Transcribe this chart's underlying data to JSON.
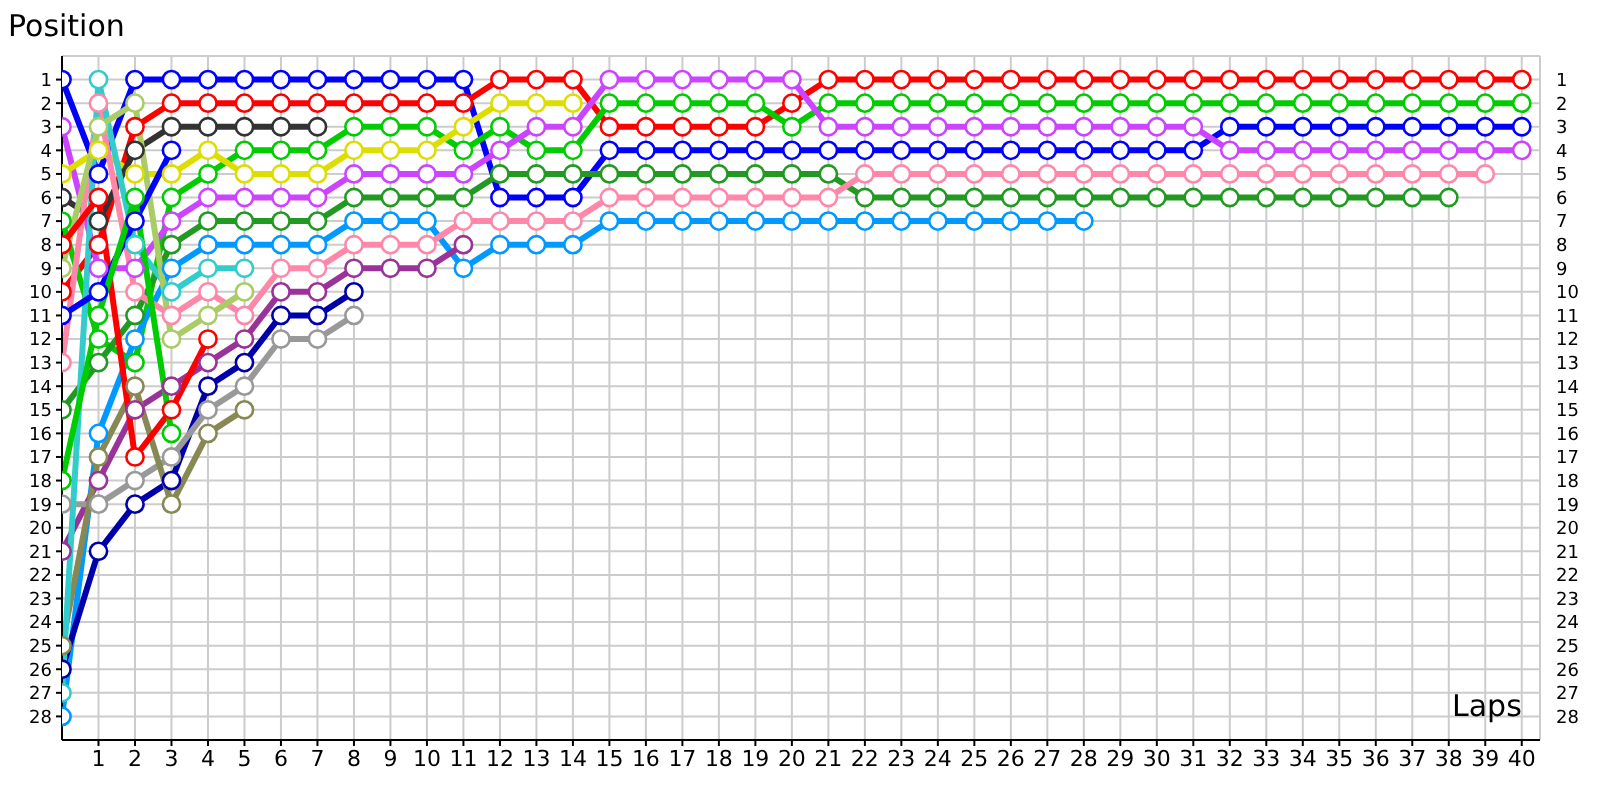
{
  "chart_data": {
    "type": "line",
    "xlabel": "Laps",
    "ylabel": "Position",
    "x": [
      0,
      1,
      2,
      3,
      4,
      5,
      6,
      7,
      8,
      9,
      10,
      11,
      12,
      13,
      14,
      15,
      16,
      17,
      18,
      19,
      20,
      21,
      22,
      23,
      24,
      25,
      26,
      27,
      28,
      29,
      30,
      31,
      32,
      33,
      34,
      35,
      36,
      37,
      38,
      39,
      40
    ],
    "xlim": [
      0,
      40.5
    ],
    "xticks": [
      1,
      2,
      3,
      4,
      5,
      6,
      7,
      8,
      9,
      10,
      11,
      12,
      13,
      14,
      15,
      16,
      17,
      18,
      19,
      20,
      21,
      22,
      23,
      24,
      25,
      26,
      27,
      28,
      29,
      30,
      31,
      32,
      33,
      34,
      35,
      36,
      37,
      38,
      39,
      40
    ],
    "ylim": [
      29,
      0
    ],
    "yticks": [
      1,
      2,
      3,
      4,
      5,
      6,
      7,
      8,
      9,
      10,
      11,
      12,
      13,
      14,
      15,
      16,
      17,
      18,
      19,
      20,
      21,
      22,
      23,
      24,
      25,
      26,
      27,
      28
    ],
    "y2lim": [
      29,
      0
    ],
    "y2ticks": [
      1,
      2,
      3,
      4,
      5,
      6,
      7,
      8,
      9,
      10,
      11,
      12,
      13,
      14,
      15,
      16,
      17,
      18,
      19,
      20,
      21,
      22,
      23,
      24,
      25,
      26,
      27,
      28
    ],
    "grid": true,
    "marker": "circle",
    "line_style": "solid",
    "series": [
      {
        "color": "#0000ff",
        "values": [
          1,
          5,
          1,
          1,
          1,
          1,
          1,
          1,
          1,
          1,
          1,
          1,
          6,
          6,
          6,
          4,
          4,
          4,
          4,
          4,
          4,
          4,
          4,
          4,
          4,
          4,
          4,
          4,
          4,
          4,
          4,
          4,
          3,
          3,
          3,
          3,
          3,
          3,
          3,
          3,
          3
        ]
      },
      {
        "color": "#ff0000",
        "values": [
          10,
          8,
          3,
          2,
          2,
          2,
          2,
          2,
          2,
          2,
          2,
          2,
          1,
          1,
          1,
          3,
          3,
          3,
          3,
          3,
          2,
          1,
          1,
          1,
          1,
          1,
          1,
          1,
          1,
          1,
          1,
          1,
          1,
          1,
          1,
          1,
          1,
          1,
          1,
          1,
          1
        ]
      },
      {
        "color": "#00cc00",
        "values": [
          7,
          12,
          13,
          6,
          5,
          4,
          4,
          4,
          3,
          3,
          3,
          4,
          3,
          4,
          4,
          2,
          2,
          2,
          2,
          2,
          3,
          2,
          2,
          2,
          2,
          2,
          2,
          2,
          2,
          2,
          2,
          2,
          2,
          2,
          2,
          2,
          2,
          2,
          2,
          2,
          2
        ]
      },
      {
        "color": "#cc44ff",
        "values": [
          3,
          9,
          9,
          7,
          6,
          6,
          6,
          6,
          5,
          5,
          5,
          5,
          4,
          3,
          3,
          1,
          1,
          1,
          1,
          1,
          1,
          3,
          3,
          3,
          3,
          3,
          3,
          3,
          3,
          3,
          3,
          3,
          4,
          4,
          4,
          4,
          4,
          4,
          4,
          4,
          4
        ]
      },
      {
        "color": "#dddd00",
        "values": [
          5,
          4,
          5,
          5,
          4,
          5,
          5,
          5,
          4,
          4,
          4,
          3,
          2,
          2,
          2,
          null,
          null,
          null,
          null,
          null,
          null,
          null,
          null,
          null,
          null,
          null,
          null,
          null,
          null,
          null,
          null,
          null,
          null,
          null,
          null,
          null,
          null,
          null,
          null,
          null,
          null
        ]
      },
      {
        "color": "#333333",
        "values": [
          6,
          7,
          4,
          3,
          3,
          3,
          3,
          3,
          null,
          null,
          null,
          null,
          null,
          null,
          null,
          null,
          null,
          null,
          null,
          null,
          null,
          null,
          null,
          null,
          null,
          null,
          null,
          null,
          null,
          null,
          null,
          null,
          null,
          null,
          null,
          null,
          null,
          null,
          null,
          null,
          null
        ]
      },
      {
        "color": "#229922",
        "values": [
          15,
          13,
          11,
          8,
          7,
          7,
          7,
          7,
          6,
          6,
          6,
          6,
          5,
          5,
          5,
          5,
          5,
          5,
          5,
          5,
          5,
          5,
          6,
          6,
          6,
          6,
          6,
          6,
          6,
          6,
          6,
          6,
          6,
          6,
          6,
          6,
          6,
          6,
          6,
          null,
          null
        ]
      },
      {
        "color": "#0099ff",
        "values": [
          28,
          16,
          12,
          9,
          8,
          8,
          8,
          8,
          7,
          7,
          7,
          9,
          8,
          8,
          8,
          7,
          7,
          7,
          7,
          7,
          7,
          7,
          7,
          7,
          7,
          7,
          7,
          7,
          7,
          null,
          null,
          null,
          null,
          null,
          null,
          null,
          null,
          null,
          null,
          null,
          null
        ]
      },
      {
        "color": "#ff88aa",
        "values": [
          13,
          2,
          10,
          11,
          10,
          11,
          9,
          9,
          8,
          8,
          8,
          7,
          7,
          7,
          7,
          6,
          6,
          6,
          6,
          6,
          6,
          6,
          5,
          5,
          5,
          5,
          5,
          5,
          5,
          5,
          5,
          5,
          5,
          5,
          5,
          5,
          5,
          5,
          5,
          5,
          null
        ]
      },
      {
        "color": "#993399",
        "values": [
          21,
          18,
          15,
          14,
          13,
          12,
          10,
          10,
          9,
          9,
          9,
          8,
          null,
          null,
          null,
          null,
          null,
          null,
          null,
          null,
          null,
          null,
          null,
          null,
          null,
          null,
          null,
          null,
          null,
          null,
          null,
          null,
          null,
          null,
          null,
          null,
          null,
          null,
          null,
          null,
          null
        ]
      },
      {
        "color": "#0000aa",
        "values": [
          26,
          21,
          19,
          18,
          14,
          13,
          11,
          11,
          10,
          null,
          null,
          null,
          null,
          null,
          null,
          null,
          null,
          null,
          null,
          null,
          null,
          null,
          null,
          null,
          null,
          null,
          null,
          null,
          null,
          null,
          null,
          null,
          null,
          null,
          null,
          null,
          null,
          null,
          null,
          null,
          null
        ]
      },
      {
        "color": "#999999",
        "values": [
          19,
          19,
          18,
          17,
          15,
          14,
          12,
          12,
          11,
          null,
          null,
          null,
          null,
          null,
          null,
          null,
          null,
          null,
          null,
          null,
          null,
          null,
          null,
          null,
          null,
          null,
          null,
          null,
          null,
          null,
          null,
          null,
          null,
          null,
          null,
          null,
          null,
          null,
          null,
          null,
          null
        ]
      },
      {
        "color": "#888855",
        "values": [
          25,
          17,
          14,
          19,
          16,
          15,
          null,
          null,
          null,
          null,
          null,
          null,
          null,
          null,
          null,
          null,
          null,
          null,
          null,
          null,
          null,
          null,
          null,
          null,
          null,
          null,
          null,
          null,
          null,
          null,
          null,
          null,
          null,
          null,
          null,
          null,
          null,
          null,
          null,
          null,
          null
        ]
      },
      {
        "color": "#33cccc",
        "values": [
          27,
          1,
          8,
          10,
          9,
          9,
          null,
          null,
          null,
          null,
          null,
          null,
          null,
          null,
          null,
          null,
          null,
          null,
          null,
          null,
          null,
          null,
          null,
          null,
          null,
          null,
          null,
          null,
          null,
          null,
          null,
          null,
          null,
          null,
          null,
          null,
          null,
          null,
          null,
          null,
          null
        ]
      },
      {
        "color": "#aacc66",
        "values": [
          9,
          3,
          2,
          12,
          11,
          10,
          null,
          null,
          null,
          null,
          null,
          null,
          null,
          null,
          null,
          null,
          null,
          null,
          null,
          null,
          null,
          null,
          null,
          null,
          null,
          null,
          null,
          null,
          null,
          null,
          null,
          null,
          null,
          null,
          null,
          null,
          null,
          null,
          null,
          null,
          null
        ]
      },
      {
        "color": "#ff0000",
        "values": [
          8,
          6,
          17,
          15,
          12,
          null,
          null,
          null,
          null,
          null,
          null,
          null,
          null,
          null,
          null,
          null,
          null,
          null,
          null,
          null,
          null,
          null,
          null,
          null,
          null,
          null,
          null,
          null,
          null,
          null,
          null,
          null,
          null,
          null,
          null,
          null,
          null,
          null,
          null,
          null,
          null
        ]
      },
      {
        "color": "#0000ff",
        "values": [
          11,
          10,
          7,
          4,
          null,
          null,
          null,
          null,
          null,
          null,
          null,
          null,
          null,
          null,
          null,
          null,
          null,
          null,
          null,
          null,
          null,
          null,
          null,
          null,
          null,
          null,
          null,
          null,
          null,
          null,
          null,
          null,
          null,
          null,
          null,
          null,
          null,
          null,
          null,
          null,
          null
        ]
      },
      {
        "color": "#00cc00",
        "values": [
          18,
          11,
          6,
          16,
          null,
          null,
          null,
          null,
          null,
          null,
          null,
          null,
          null,
          null,
          null,
          null,
          null,
          null,
          null,
          null,
          null,
          null,
          null,
          null,
          null,
          null,
          null,
          null,
          null,
          null,
          null,
          null,
          null,
          null,
          null,
          null,
          null,
          null,
          null,
          null,
          null
        ]
      }
    ]
  }
}
